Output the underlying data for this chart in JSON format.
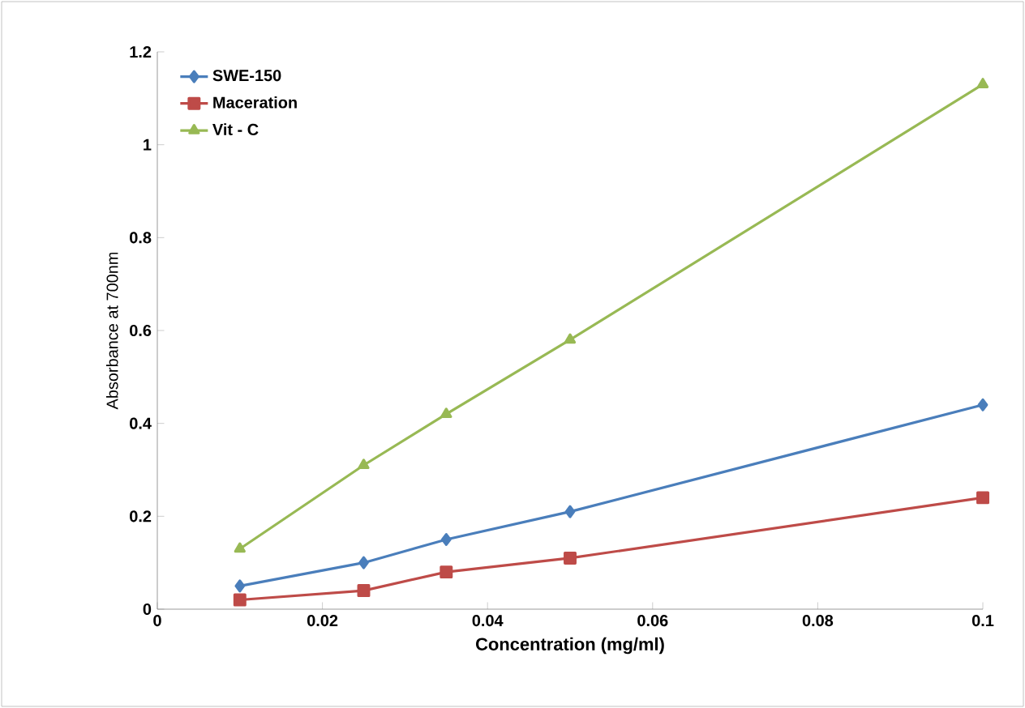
{
  "chart_data": {
    "type": "line",
    "xlabel": "Concentration (mg/ml)",
    "ylabel": "Absorbance at 700nm",
    "x": [
      0.01,
      0.025,
      0.035,
      0.05,
      0.1
    ],
    "series": [
      {
        "name": "SWE-150",
        "color": "#4a7ebb",
        "marker": "diamond",
        "values": [
          0.05,
          0.1,
          0.15,
          0.21,
          0.44
        ]
      },
      {
        "name": "Maceration",
        "color": "#be4b48",
        "marker": "square",
        "values": [
          0.02,
          0.04,
          0.08,
          0.11,
          0.24
        ]
      },
      {
        "name": "Vit - C",
        "color": "#98b954",
        "marker": "triangle",
        "values": [
          0.13,
          0.31,
          0.42,
          0.58,
          1.13
        ]
      }
    ],
    "xlim": [
      0,
      0.1
    ],
    "ylim": [
      0,
      1.2
    ],
    "xticks": [
      0,
      0.02,
      0.04,
      0.06,
      0.08,
      0.1
    ],
    "yticks": [
      0,
      0.2,
      0.4,
      0.6,
      0.8,
      1,
      1.2
    ],
    "legend": "top left",
    "grid": false,
    "line_style": "solid"
  }
}
